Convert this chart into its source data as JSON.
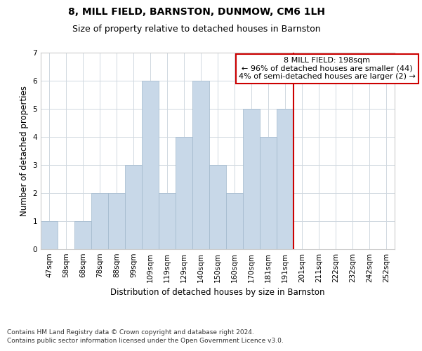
{
  "title": "8, MILL FIELD, BARNSTON, DUNMOW, CM6 1LH",
  "subtitle": "Size of property relative to detached houses in Barnston",
  "xlabel": "Distribution of detached houses by size in Barnston",
  "ylabel": "Number of detached properties",
  "categories": [
    "47sqm",
    "58sqm",
    "68sqm",
    "78sqm",
    "88sqm",
    "99sqm",
    "109sqm",
    "119sqm",
    "129sqm",
    "140sqm",
    "150sqm",
    "160sqm",
    "170sqm",
    "181sqm",
    "191sqm",
    "201sqm",
    "211sqm",
    "222sqm",
    "232sqm",
    "242sqm",
    "252sqm"
  ],
  "values": [
    1,
    0,
    1,
    2,
    2,
    3,
    6,
    2,
    4,
    6,
    3,
    2,
    5,
    4,
    5,
    0,
    0,
    0,
    0,
    0,
    0
  ],
  "bar_color": "#c8d8e8",
  "bar_edge_color": "#a0b8cc",
  "ylim": [
    0,
    7
  ],
  "yticks": [
    0,
    1,
    2,
    3,
    4,
    5,
    6,
    7
  ],
  "red_line_index": 14,
  "annotation_text": "8 MILL FIELD: 198sqm\n← 96% of detached houses are smaller (44)\n4% of semi-detached houses are larger (2) →",
  "annotation_box_color": "#ffffff",
  "annotation_box_edge_color": "#cc0000",
  "red_line_color": "#cc0000",
  "grid_color": "#d0d8e0",
  "background_color": "#ffffff",
  "footnote1": "Contains HM Land Registry data © Crown copyright and database right 2024.",
  "footnote2": "Contains public sector information licensed under the Open Government Licence v3.0.",
  "title_fontsize": 10,
  "subtitle_fontsize": 9,
  "xlabel_fontsize": 8.5,
  "ylabel_fontsize": 8.5,
  "tick_fontsize": 7.5,
  "annotation_fontsize": 8,
  "footnote_fontsize": 6.5
}
